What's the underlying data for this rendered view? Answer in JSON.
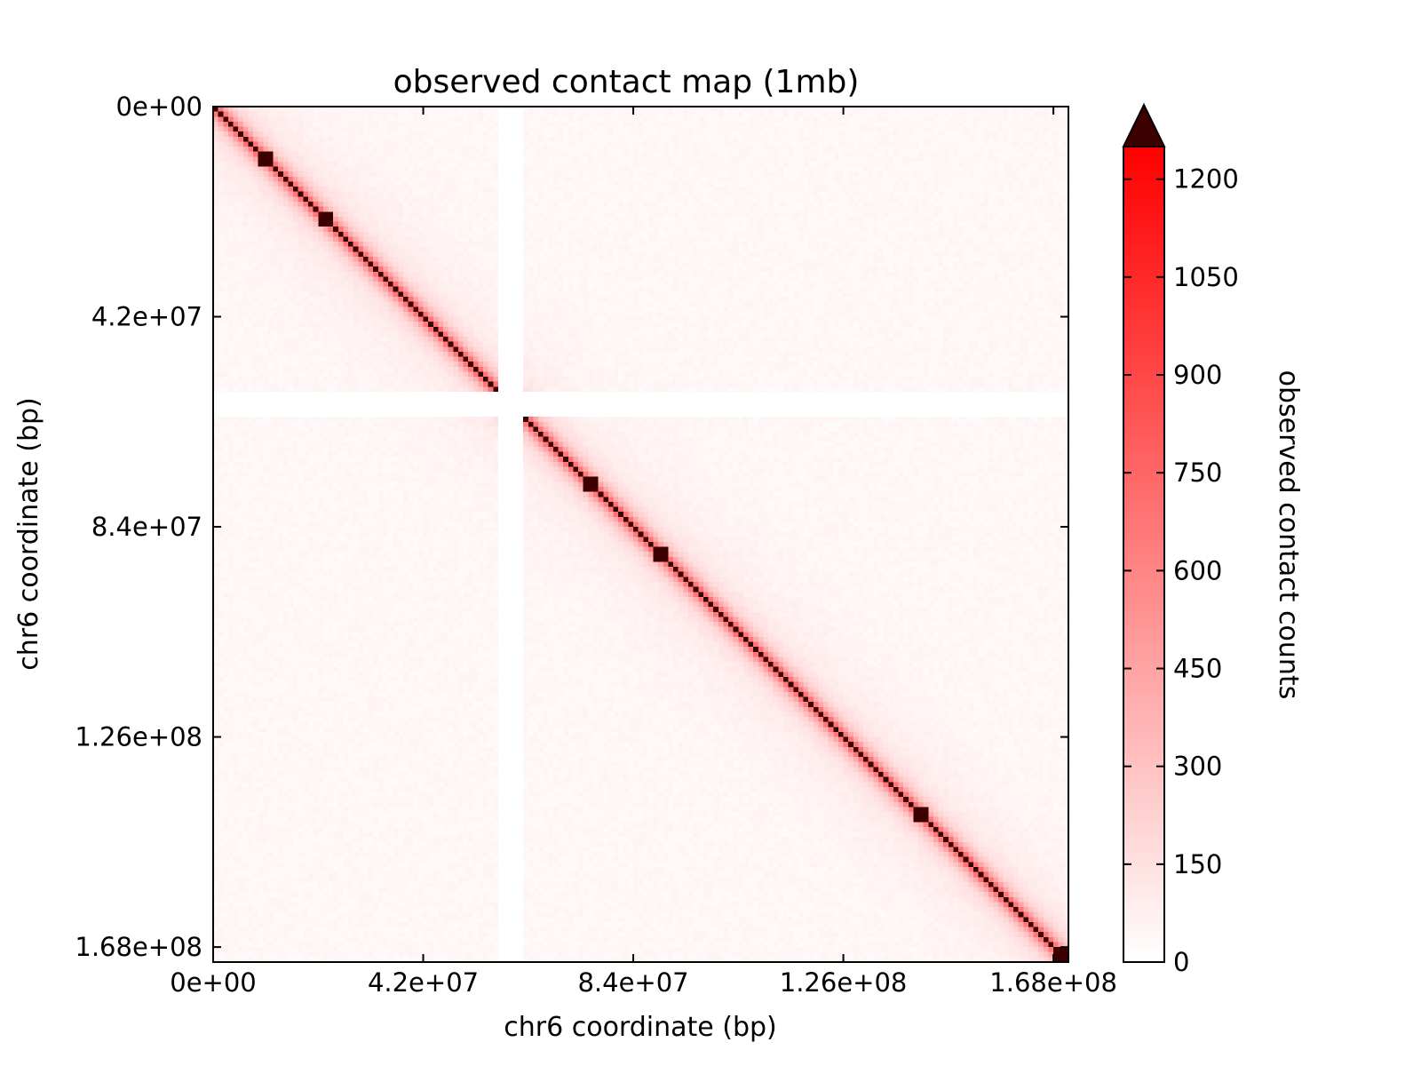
{
  "chart_data": {
    "type": "heatmap",
    "title": "observed contact map (1mb)",
    "xlabel": "chr6 coordinate (bp)",
    "ylabel": "chr6 coordinate (bp)",
    "xlim": [
      0,
      171000000
    ],
    "ylim": [
      0,
      171000000
    ],
    "x_ticks": [
      0,
      42000000,
      84000000,
      126000000,
      168000000
    ],
    "y_ticks": [
      0,
      42000000,
      84000000,
      126000000,
      168000000
    ],
    "x_tick_labels": [
      "0e+00",
      "4.2e+07",
      "8.4e+07",
      "1.26e+08",
      "1.68e+08"
    ],
    "y_tick_labels": [
      "0e+00",
      "4.2e+07",
      "8.4e+07",
      "1.26e+08",
      "1.68e+08"
    ],
    "bin_size_bp": 1000000,
    "n_bins": 171,
    "gap_bins": [
      57,
      61
    ],
    "colorbar": {
      "label": "observed contact counts",
      "vmin": 0,
      "vmax": 1250,
      "ticks": [
        0,
        150,
        300,
        450,
        600,
        750,
        900,
        1050,
        1200
      ],
      "tick_labels": [
        "0",
        "150",
        "300",
        "450",
        "600",
        "750",
        "900",
        "1050",
        "1200"
      ],
      "extend": "max",
      "cmap": [
        "#ffffff",
        "#ff0000"
      ],
      "over_color": "#3d0000"
    },
    "diagonal_hotspots_bins": [
      10,
      22,
      75,
      89,
      141,
      169
    ],
    "diagonal_value": 1400,
    "background_value": 40
  }
}
